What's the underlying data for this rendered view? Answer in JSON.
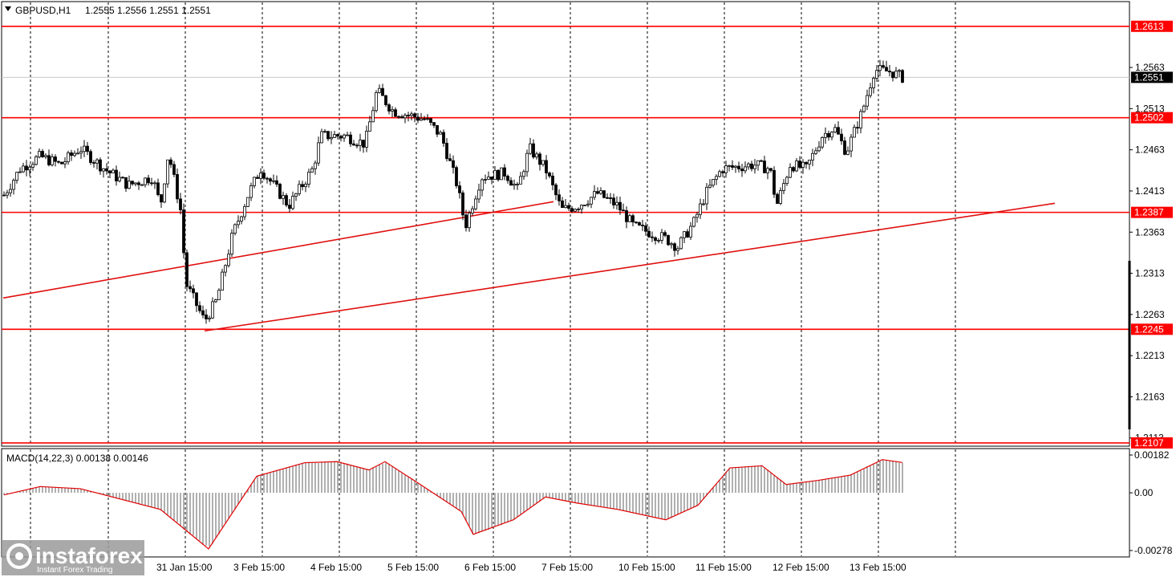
{
  "header": {
    "symbol": "GBPUSD,H1",
    "ohlc": "1.2555 1.2556 1.2551 1.2551"
  },
  "macd": {
    "label": "MACD(14,22,3) 0.00138 0.00146",
    "ticks": [
      "0.00182",
      "0.00",
      "-0.00278"
    ]
  },
  "watermark": {
    "brand": "instaforex",
    "tagline": "Instant Forex Trading"
  },
  "chart_data": {
    "type": "candlestick",
    "price_axis_ticks": [
      "1.2563",
      "1.2513",
      "1.2463",
      "1.2413",
      "1.2363",
      "1.2313",
      "1.2263",
      "1.2213",
      "1.2163",
      "1.2113"
    ],
    "horizontal_levels": [
      "1.2613",
      "1.2502",
      "1.2387",
      "1.2245",
      "1.2107"
    ],
    "current_price": "1.2551",
    "x_labels": [
      "31 Jan 15:00",
      "3 Feb 15:00",
      "4 Feb 15:00",
      "5 Feb 15:00",
      "6 Feb 15:00",
      "7 Feb 15:00",
      "10 Feb 15:00",
      "11 Feb 15:00",
      "12 Feb 15:00",
      "13 Feb 15:00"
    ],
    "price_range": [
      1.2103,
      1.2643
    ],
    "macd_range": [
      -0.00278,
      0.00182
    ],
    "trendlines": [
      {
        "from": [
          "29 Jan",
          1.2283
        ],
        "to": [
          "7 Feb",
          1.24
        ]
      },
      {
        "from": [
          "31 Jan",
          1.2243
        ],
        "to": [
          "14 Feb",
          1.2398
        ]
      }
    ],
    "price_path": [
      [
        1.24,
        0
      ],
      [
        1.244,
        25
      ],
      [
        1.2455,
        50
      ],
      [
        1.2445,
        75
      ],
      [
        1.2465,
        100
      ],
      [
        1.244,
        130
      ],
      [
        1.242,
        160
      ],
      [
        1.243,
        190
      ],
      [
        1.2395,
        200
      ],
      [
        1.246,
        210
      ],
      [
        1.239,
        225
      ],
      [
        1.23,
        232
      ],
      [
        1.2255,
        255
      ],
      [
        1.228,
        270
      ],
      [
        1.236,
        290
      ],
      [
        1.241,
        310
      ],
      [
        1.244,
        325
      ],
      [
        1.2415,
        345
      ],
      [
        1.2395,
        360
      ],
      [
        1.244,
        390
      ],
      [
        1.248,
        400
      ],
      [
        1.248,
        430
      ],
      [
        1.247,
        455
      ],
      [
        1.2535,
        470
      ],
      [
        1.251,
        490
      ],
      [
        1.25,
        530
      ],
      [
        1.248,
        550
      ],
      [
        1.242,
        570
      ],
      [
        1.237,
        580
      ],
      [
        1.243,
        600
      ],
      [
        1.2435,
        630
      ],
      [
        1.2415,
        645
      ],
      [
        1.2465,
        660
      ],
      [
        1.244,
        680
      ],
      [
        1.239,
        700
      ],
      [
        1.2395,
        720
      ],
      [
        1.241,
        745
      ],
      [
        1.2395,
        770
      ],
      [
        1.237,
        790
      ],
      [
        1.2355,
        830
      ],
      [
        1.2345,
        845
      ],
      [
        1.2375,
        865
      ],
      [
        1.241,
        880
      ],
      [
        1.244,
        900
      ],
      [
        1.2445,
        940
      ],
      [
        1.244,
        960
      ],
      [
        1.2395,
        968
      ],
      [
        1.2445,
        985
      ],
      [
        1.244,
        1005
      ],
      [
        1.248,
        1025
      ],
      [
        1.249,
        1040
      ],
      [
        1.246,
        1055
      ],
      [
        1.251,
        1075
      ],
      [
        1.256,
        1090
      ],
      [
        1.2558,
        1110
      ],
      [
        1.2551,
        1125
      ]
    ],
    "macd_line_path": [
      [
        -0.0001,
        5
      ],
      [
        0.0003,
        50
      ],
      [
        0.0002,
        100
      ],
      [
        -0.0008,
        200
      ],
      [
        -0.0027,
        260
      ],
      [
        0.0008,
        320
      ],
      [
        0.00145,
        380
      ],
      [
        0.0015,
        420
      ],
      [
        0.0011,
        460
      ],
      [
        0.0015,
        480
      ],
      [
        0.0005,
        520
      ],
      [
        -0.0009,
        575
      ],
      [
        -0.002,
        590
      ],
      [
        -0.0013,
        640
      ],
      [
        -0.0002,
        680
      ],
      [
        -0.0005,
        720
      ],
      [
        -0.0008,
        770
      ],
      [
        -0.0013,
        830
      ],
      [
        -0.0006,
        870
      ],
      [
        0.0012,
        910
      ],
      [
        0.0013,
        950
      ],
      [
        0.0004,
        980
      ],
      [
        0.0006,
        1020
      ],
      [
        0.00085,
        1060
      ],
      [
        0.0016,
        1100
      ],
      [
        0.00146,
        1125
      ]
    ]
  },
  "colors": {
    "level_line": "#ff0000",
    "trend_line": "#e01010",
    "price_tag": "#ff0000",
    "current_tag": "#000000",
    "grid": "#000000",
    "candle": "#000000",
    "macd_hist": "#b0b0b0",
    "macd_signal": "#e00000"
  }
}
